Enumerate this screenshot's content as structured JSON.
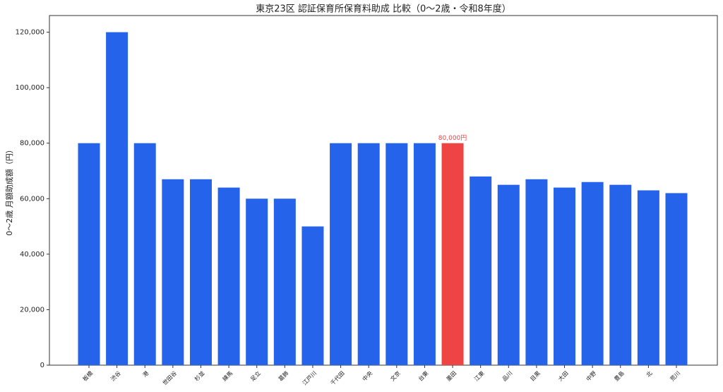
{
  "chart_data": {
    "type": "bar",
    "title": "東京23区 認証保育所保育料助成 比較（0〜2歳・令和8年度）",
    "y_label": "0〜2歳 月額助成額（円）",
    "categories": [
      "板橋",
      "渋谷",
      "港",
      "世田谷",
      "杉並",
      "練馬",
      "足立",
      "葛飾",
      "江戸川",
      "千代田",
      "中央",
      "文京",
      "台東",
      "墨田",
      "江東",
      "品川",
      "目黒",
      "大田",
      "中野",
      "豊島",
      "北",
      "荒川"
    ],
    "values": [
      80000,
      120000,
      80000,
      67000,
      67000,
      64000,
      60000,
      60000,
      50000,
      80000,
      80000,
      80000,
      80000,
      80000,
      68000,
      65000,
      67000,
      64000,
      66000,
      65000,
      63000,
      62000
    ],
    "value_labels": [
      null,
      null,
      null,
      null,
      null,
      null,
      null,
      null,
      null,
      null,
      null,
      null,
      null,
      "80,000円",
      null,
      null,
      null,
      null,
      null,
      null,
      null,
      null
    ],
    "colors": [
      "#2563eb",
      "#2563eb",
      "#2563eb",
      "#2563eb",
      "#2563eb",
      "#2563eb",
      "#2563eb",
      "#2563eb",
      "#2563eb",
      "#2563eb",
      "#2563eb",
      "#2563eb",
      "#2563eb",
      "#ef4444",
      "#2563eb",
      "#2563eb",
      "#2563eb",
      "#2563eb",
      "#2563eb",
      "#2563eb",
      "#2563eb",
      "#2563eb"
    ],
    "ylim": [
      0,
      126000
    ],
    "yticks": [
      0,
      {
        "value": 20000,
        "label": "20,000"
      },
      {
        "value": 40000,
        "label": "40,000"
      },
      {
        "value": 60000,
        "label": "60,000"
      },
      {
        "value": 80000,
        "label": "80,000"
      },
      {
        "value": 100000,
        "label": "100,000"
      },
      {
        "value": 120000,
        "label": "120,000"
      }
    ],
    "grid": false
  }
}
